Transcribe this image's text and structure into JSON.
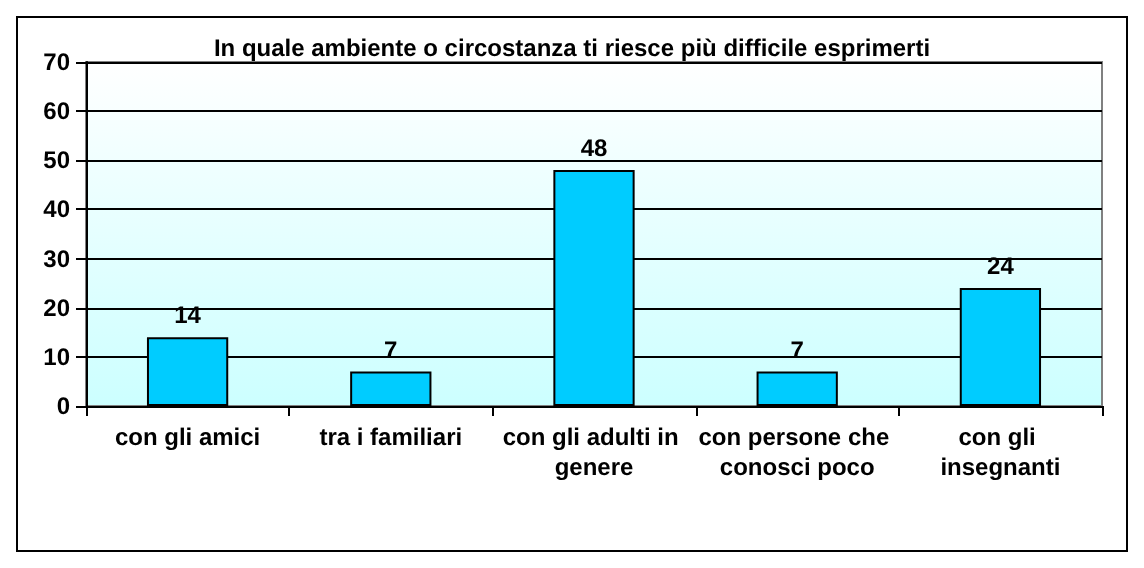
{
  "chart_data": {
    "type": "bar",
    "title": "In quale ambiente o circostanza ti riesce più difficile esprimerti",
    "categories": [
      "con gli amici",
      "tra i familiari",
      "con gli adulti in genere",
      "con persone che conosci poco",
      "con gli insegnanti"
    ],
    "values": [
      14,
      7,
      48,
      7,
      24
    ],
    "color": "#00ccff",
    "ylim": [
      0,
      70
    ],
    "yticks": [
      0,
      10,
      20,
      30,
      40,
      50,
      60,
      70
    ],
    "grid": "y",
    "data_labels": true
  }
}
